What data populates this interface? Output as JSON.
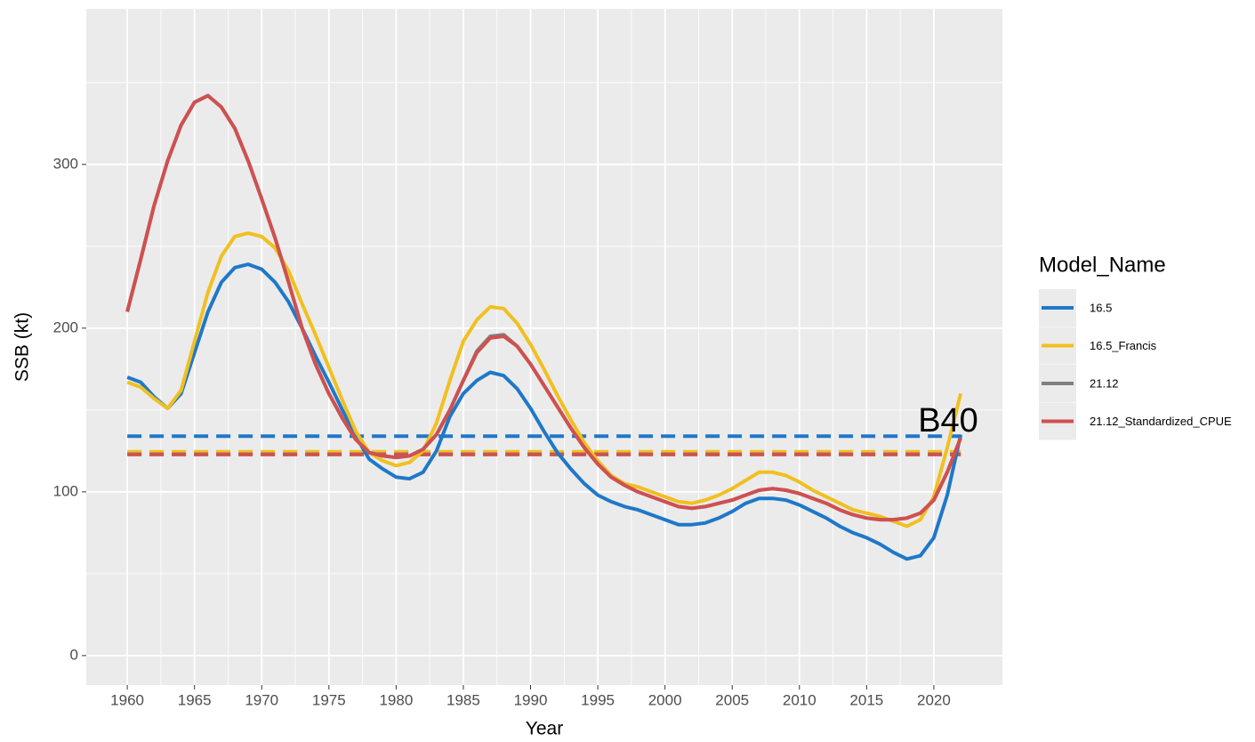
{
  "chart_data": {
    "type": "line",
    "x_label": "Year",
    "y_label": "SSB (kt)",
    "legend_title": "Model_Name",
    "annotation": "B40",
    "x": [
      1960,
      1961,
      1962,
      1963,
      1964,
      1965,
      1966,
      1967,
      1968,
      1969,
      1970,
      1971,
      1972,
      1973,
      1974,
      1975,
      1976,
      1977,
      1978,
      1979,
      1980,
      1981,
      1982,
      1983,
      1984,
      1985,
      1986,
      1987,
      1988,
      1989,
      1990,
      1991,
      1992,
      1993,
      1994,
      1995,
      1996,
      1997,
      1998,
      1999,
      2000,
      2001,
      2002,
      2003,
      2004,
      2005,
      2006,
      2007,
      2008,
      2009,
      2010,
      2011,
      2012,
      2013,
      2014,
      2015,
      2016,
      2017,
      2018,
      2019,
      2020,
      2021,
      2022
    ],
    "xlim": [
      1956.95,
      2025.1
    ],
    "xticks": [
      1960,
      1965,
      1970,
      1975,
      1980,
      1985,
      1990,
      1995,
      2000,
      2005,
      2010,
      2015,
      2020
    ],
    "ylim": [
      -18,
      395
    ],
    "yticks": [
      0,
      100,
      200,
      300
    ],
    "grid": true,
    "series": [
      {
        "name": "16.5",
        "color": "#1f78c8",
        "b40": 134,
        "values": [
          170,
          167,
          158,
          151,
          160,
          185,
          210,
          228,
          237,
          239,
          236,
          228,
          216,
          200,
          183,
          167,
          150,
          134,
          120,
          114,
          109,
          108,
          112,
          125,
          146,
          160,
          168,
          173,
          171,
          163,
          151,
          137,
          124,
          114,
          105,
          98,
          94,
          91,
          89,
          86,
          83,
          80,
          80,
          81,
          84,
          88,
          93,
          96,
          96,
          95,
          92,
          88,
          84,
          79,
          75,
          72,
          68,
          63,
          59,
          61,
          72,
          98,
          135
        ]
      },
      {
        "name": "16.5_Francis",
        "color": "#f0c020",
        "b40": 124.5,
        "values": [
          167,
          164,
          157,
          151,
          162,
          192,
          222,
          244,
          256,
          258,
          256,
          249,
          235,
          215,
          196,
          176,
          156,
          137,
          124,
          119,
          116,
          118,
          125,
          142,
          168,
          192,
          205,
          213,
          212,
          203,
          190,
          175,
          159,
          144,
          130,
          119,
          110,
          105,
          103,
          100,
          97,
          94,
          93,
          95,
          98,
          102,
          107,
          112,
          112,
          110,
          106,
          101,
          97,
          93,
          89,
          87,
          85,
          82,
          79,
          83,
          97,
          127,
          160
        ]
      },
      {
        "name": "21.12",
        "color": "#808080",
        "b40": 123,
        "values": [
          210,
          242,
          275,
          302,
          324,
          338,
          342,
          335,
          322,
          302,
          279,
          255,
          228,
          200,
          178,
          160,
          145,
          132,
          124,
          122,
          121,
          122,
          126,
          135,
          150,
          168,
          186,
          195,
          196,
          189,
          178,
          165,
          152,
          139,
          127,
          117,
          109,
          104,
          100,
          97,
          94,
          91,
          90,
          91,
          93,
          95,
          98,
          101,
          102,
          101,
          99,
          96,
          93,
          89,
          86,
          84,
          83,
          83,
          84,
          87,
          95,
          112,
          133
        ]
      },
      {
        "name": "21.12_Standardized_CPUE",
        "color": "#d05050",
        "b40": 122.8,
        "values": [
          210,
          242,
          275,
          302,
          324,
          338,
          342,
          335,
          322,
          302,
          279,
          255,
          228,
          200,
          178,
          160,
          145,
          132,
          124,
          122,
          121,
          122,
          126,
          135,
          150,
          168,
          185,
          194,
          195,
          189,
          178,
          165,
          152,
          139,
          127,
          117,
          109,
          104,
          100,
          97,
          94,
          91,
          90,
          91,
          93,
          95,
          98,
          101,
          102,
          101,
          99,
          96,
          93,
          89,
          86,
          84,
          83,
          83,
          84,
          87,
          95,
          112,
          133
        ]
      }
    ]
  }
}
